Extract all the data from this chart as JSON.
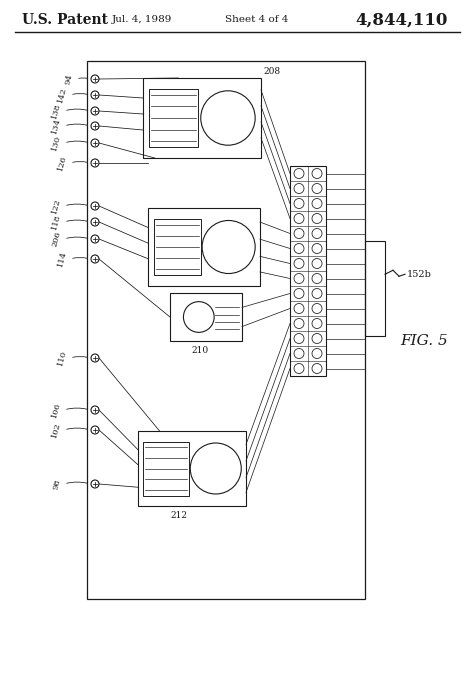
{
  "title": "U.S. Patent",
  "date": "Jul. 4, 1989",
  "sheet": "Sheet 4 of 4",
  "patent_num": "4,844,110",
  "fig_label": "FIG. 5",
  "bg_color": "#ffffff",
  "line_color": "#1a1a1a",
  "connector_label": "152b",
  "label_208": "208",
  "label_210": "210",
  "label_212": "212",
  "left_labels": [
    "94",
    "142",
    "138",
    "134",
    "130",
    "126",
    "122",
    "118",
    "206",
    "114",
    "110",
    "106",
    "102",
    "98"
  ],
  "figsize": [
    4.74,
    6.96
  ],
  "dpi": 100
}
